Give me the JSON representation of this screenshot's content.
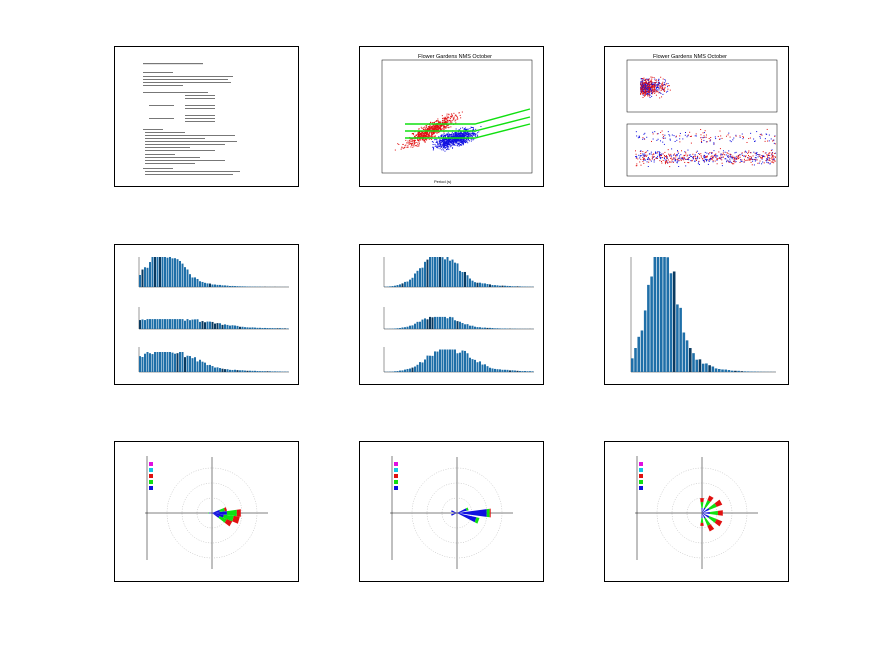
{
  "grid": {
    "columns": 3,
    "rows": 3
  },
  "colors": {
    "frame": "#000000",
    "bar": "#1f6fa8",
    "bar_dark": "#0a3a60",
    "red": "#e01010",
    "blue": "#1010e0",
    "green": "#10e010",
    "magenta": "#e010e0",
    "cyan": "#10c8e0"
  },
  "thumbnails": [
    {
      "id": "report-text",
      "kind": "text-report"
    },
    {
      "id": "scatter-wind",
      "kind": "scatter",
      "title": "Flower Gardens NMS October",
      "xlabel": "Period (s)"
    },
    {
      "id": "dual-scatter",
      "kind": "dual-scatter",
      "title": "Flower Gardens NMS October"
    },
    {
      "id": "hist-triple-a",
      "kind": "histogram-stack"
    },
    {
      "id": "hist-triple-b",
      "kind": "histogram-stack"
    },
    {
      "id": "hist-single",
      "kind": "histogram"
    },
    {
      "id": "rose-a",
      "kind": "wind-rose"
    },
    {
      "id": "rose-b",
      "kind": "wind-rose"
    },
    {
      "id": "rose-c",
      "kind": "wind-rose"
    }
  ]
}
